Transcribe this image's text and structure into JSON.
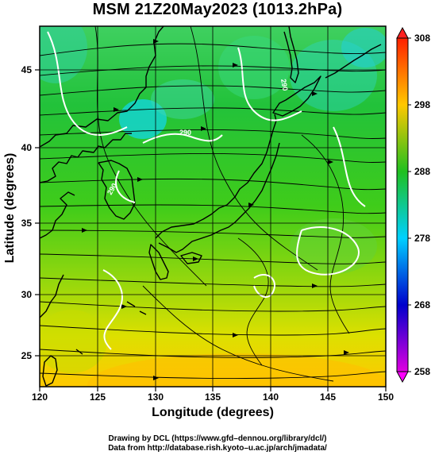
{
  "title": "MSM 21Z20May2023 (1013.2hPa)",
  "x_axis": {
    "label": "Longitude (degrees)",
    "ticks": [
      "120",
      "125",
      "130",
      "135",
      "140",
      "145",
      "150"
    ]
  },
  "y_axis": {
    "label": "Latitude  (degrees)",
    "ticks": [
      "25",
      "30",
      "35",
      "40",
      "45"
    ]
  },
  "colorbar": {
    "ticks": [
      "258",
      "268",
      "278",
      "288",
      "298",
      "308"
    ]
  },
  "contour_labels": [
    "290",
    "290",
    "290"
  ],
  "credits": {
    "line1": "Drawing by DCL (https://www.gfd–dennou.org/library/dcl/)",
    "line2": "Data from http://database.rish.kyoto–u.ac.jp/arch/jmadata/"
  },
  "colors": {
    "land_outline": "#000000",
    "contour": "#ffffff",
    "warm": "#ffd000",
    "mid": "#20c020",
    "cool": "#00c8ff"
  }
}
